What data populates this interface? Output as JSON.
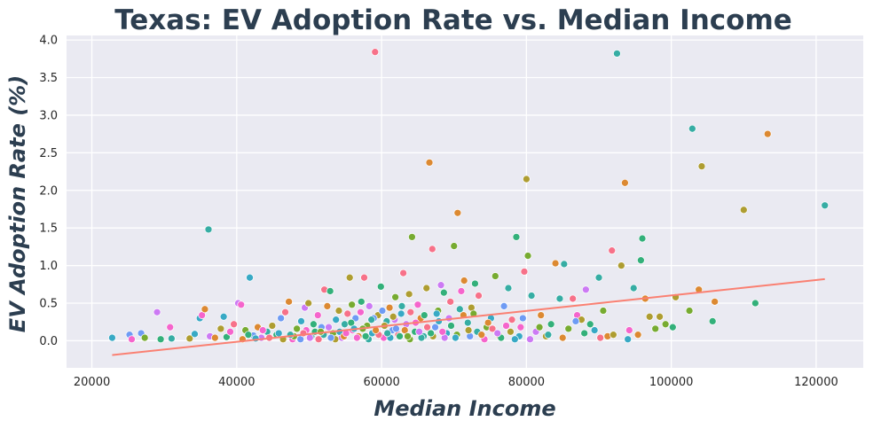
{
  "chart_data": {
    "type": "scatter",
    "title": "Texas: EV Adoption Rate vs. Median Income",
    "xlabel": "Median Income",
    "ylabel": "EV Adoption Rate (%)",
    "xlim": [
      16500,
      126500
    ],
    "ylim": [
      -0.36,
      4.06
    ],
    "xticks": [
      20000,
      40000,
      60000,
      80000,
      100000,
      120000
    ],
    "yticks": [
      0.0,
      0.5,
      1.0,
      1.5,
      2.0,
      2.5,
      3.0,
      3.5,
      4.0
    ],
    "xtick_labels": [
      "20000",
      "40000",
      "60000",
      "80000",
      "100000",
      "120000"
    ],
    "ytick_labels": [
      "0.0",
      "0.5",
      "1.0",
      "1.5",
      "2.0",
      "2.5",
      "3.0",
      "3.5",
      "4.0"
    ],
    "grid": true,
    "background": "#eaeaf2",
    "palette": [
      "#f77189",
      "#dc8932",
      "#ae9d31",
      "#77ab31",
      "#33b07a",
      "#36ada4",
      "#38a9c5",
      "#6e9bf4",
      "#cc7af4",
      "#f565cc"
    ],
    "trend_line": {
      "color": "#fa8072",
      "points": [
        [
          22800,
          -0.19
        ],
        [
          121200,
          0.82
        ]
      ]
    },
    "points": [
      [
        22800,
        0.04,
        6
      ],
      [
        25200,
        0.08,
        7
      ],
      [
        25500,
        0.02,
        9
      ],
      [
        26800,
        0.1,
        7
      ],
      [
        27300,
        0.04,
        3
      ],
      [
        29000,
        0.38,
        8
      ],
      [
        29500,
        0.02,
        4
      ],
      [
        30800,
        0.18,
        9
      ],
      [
        31000,
        0.03,
        5
      ],
      [
        33500,
        0.03,
        2
      ],
      [
        34200,
        0.09,
        6
      ],
      [
        34900,
        0.3,
        6
      ],
      [
        35200,
        0.34,
        9
      ],
      [
        35600,
        0.42,
        1
      ],
      [
        36100,
        1.48,
        5
      ],
      [
        36300,
        0.06,
        8
      ],
      [
        37000,
        0.04,
        1
      ],
      [
        37800,
        0.16,
        2
      ],
      [
        38200,
        0.32,
        6
      ],
      [
        38600,
        0.05,
        4
      ],
      [
        39100,
        0.12,
        9
      ],
      [
        39600,
        0.22,
        0
      ],
      [
        40200,
        0.5,
        8
      ],
      [
        40600,
        0.48,
        9
      ],
      [
        41200,
        0.14,
        3
      ],
      [
        41800,
        0.84,
        6
      ],
      [
        42300,
        0.07,
        7
      ],
      [
        42900,
        0.18,
        1
      ],
      [
        43400,
        0.04,
        8
      ],
      [
        44200,
        0.12,
        5
      ],
      [
        44900,
        0.2,
        2
      ],
      [
        45500,
        0.08,
        4
      ],
      [
        46100,
        0.3,
        7
      ],
      [
        46700,
        0.38,
        0
      ],
      [
        47200,
        0.52,
        1
      ],
      [
        47700,
        0.02,
        9
      ],
      [
        48300,
        0.16,
        3
      ],
      [
        48900,
        0.26,
        6
      ],
      [
        49400,
        0.44,
        8
      ],
      [
        49900,
        0.5,
        2
      ],
      [
        50300,
        0.06,
        5
      ],
      [
        50800,
        0.12,
        4
      ],
      [
        51200,
        0.34,
        9
      ],
      [
        51700,
        0.18,
        7
      ],
      [
        52100,
        0.68,
        0
      ],
      [
        52500,
        0.46,
        1
      ],
      [
        52900,
        0.66,
        4
      ],
      [
        53300,
        0.1,
        3
      ],
      [
        53700,
        0.28,
        6
      ],
      [
        54100,
        0.4,
        2
      ],
      [
        54500,
        0.04,
        8
      ],
      [
        54900,
        0.22,
        5
      ],
      [
        55300,
        0.36,
        0
      ],
      [
        55600,
        0.84,
        2
      ],
      [
        56000,
        0.14,
        9
      ],
      [
        56400,
        0.3,
        7
      ],
      [
        56800,
        0.06,
        1
      ],
      [
        57200,
        0.52,
        4
      ],
      [
        57600,
        0.84,
        0
      ],
      [
        58000,
        0.2,
        3
      ],
      [
        58300,
        0.46,
        8
      ],
      [
        58700,
        0.1,
        6
      ],
      [
        59100,
        3.84,
        0
      ],
      [
        59500,
        0.34,
        2
      ],
      [
        59900,
        0.72,
        4
      ],
      [
        60300,
        0.04,
        9
      ],
      [
        60700,
        0.26,
        5
      ],
      [
        61100,
        0.44,
        1
      ],
      [
        61500,
        0.14,
        7
      ],
      [
        61900,
        0.58,
        3
      ],
      [
        62300,
        0.08,
        0
      ],
      [
        62700,
        0.36,
        6
      ],
      [
        63000,
        0.9,
        0
      ],
      [
        63400,
        0.22,
        8
      ],
      [
        63800,
        0.62,
        2
      ],
      [
        64200,
        1.38,
        3
      ],
      [
        64600,
        0.12,
        4
      ],
      [
        65000,
        0.48,
        9
      ],
      [
        65400,
        0.3,
        1
      ],
      [
        65800,
        0.06,
        5
      ],
      [
        66200,
        0.7,
        2
      ],
      [
        66600,
        2.37,
        1
      ],
      [
        67000,
        1.22,
        0
      ],
      [
        67400,
        0.18,
        7
      ],
      [
        67800,
        0.4,
        3
      ],
      [
        68200,
        0.74,
        8
      ],
      [
        68600,
        0.64,
        4
      ],
      [
        69000,
        0.1,
        6
      ],
      [
        69500,
        0.52,
        0
      ],
      [
        70000,
        1.26,
        3
      ],
      [
        70500,
        1.7,
        1
      ],
      [
        71000,
        0.66,
        9
      ],
      [
        71400,
        0.8,
        1
      ],
      [
        71900,
        0.24,
        5
      ],
      [
        72400,
        0.44,
        2
      ],
      [
        72900,
        0.76,
        4
      ],
      [
        73400,
        0.6,
        0
      ],
      [
        73900,
        0.08,
        7
      ],
      [
        74500,
        0.18,
        3
      ],
      [
        75100,
        0.3,
        6
      ],
      [
        75700,
        0.86,
        3
      ],
      [
        76300,
        0.06,
        1
      ],
      [
        76900,
        0.46,
        7
      ],
      [
        77500,
        0.7,
        5
      ],
      [
        78000,
        0.28,
        0
      ],
      [
        78600,
        1.38,
        4
      ],
      [
        79200,
        0.18,
        9
      ],
      [
        79700,
        0.92,
        0
      ],
      [
        80000,
        2.15,
        2
      ],
      [
        80200,
        1.13,
        3
      ],
      [
        80700,
        0.6,
        5
      ],
      [
        81300,
        0.12,
        8
      ],
      [
        82000,
        0.34,
        1
      ],
      [
        82700,
        0.06,
        2
      ],
      [
        83400,
        0.22,
        4
      ],
      [
        84000,
        1.03,
        1
      ],
      [
        84600,
        0.56,
        5
      ],
      [
        85200,
        1.02,
        5
      ],
      [
        85800,
        0.16,
        3
      ],
      [
        86400,
        0.56,
        0
      ],
      [
        87000,
        0.34,
        9
      ],
      [
        87600,
        0.28,
        2
      ],
      [
        88200,
        0.68,
        8
      ],
      [
        88800,
        0.22,
        4
      ],
      [
        89400,
        0.14,
        6
      ],
      [
        90000,
        0.84,
        5
      ],
      [
        90600,
        0.4,
        3
      ],
      [
        91200,
        0.06,
        1
      ],
      [
        91800,
        1.2,
        0
      ],
      [
        92500,
        3.82,
        5
      ],
      [
        93100,
        1.0,
        2
      ],
      [
        93600,
        2.1,
        1
      ],
      [
        94200,
        0.14,
        9
      ],
      [
        94800,
        0.7,
        5
      ],
      [
        95400,
        0.08,
        1
      ],
      [
        95800,
        1.07,
        4
      ],
      [
        96000,
        1.36,
        4
      ],
      [
        96400,
        0.56,
        1
      ],
      [
        97000,
        0.32,
        2
      ],
      [
        97800,
        0.16,
        3
      ],
      [
        98400,
        0.32,
        2
      ],
      [
        99200,
        0.22,
        3
      ],
      [
        100200,
        0.18,
        4
      ],
      [
        100600,
        0.58,
        2
      ],
      [
        102500,
        0.4,
        3
      ],
      [
        102900,
        2.82,
        5
      ],
      [
        103800,
        0.68,
        1
      ],
      [
        104200,
        2.32,
        2
      ],
      [
        105700,
        0.26,
        4
      ],
      [
        106000,
        0.52,
        1
      ],
      [
        110000,
        1.74,
        2
      ],
      [
        111600,
        0.5,
        4
      ],
      [
        113300,
        2.75,
        1
      ],
      [
        121200,
        1.8,
        5
      ],
      [
        44500,
        0.04,
        0
      ],
      [
        45800,
        0.1,
        6
      ],
      [
        47900,
        0.06,
        3
      ],
      [
        48800,
        0.02,
        7
      ],
      [
        49600,
        0.14,
        9
      ],
      [
        50600,
        0.22,
        4
      ],
      [
        51300,
        0.02,
        0
      ],
      [
        52000,
        0.08,
        5
      ],
      [
        52700,
        0.18,
        8
      ],
      [
        53600,
        0.02,
        2
      ],
      [
        54200,
        0.12,
        6
      ],
      [
        54800,
        0.06,
        1
      ],
      [
        55800,
        0.24,
        4
      ],
      [
        56600,
        0.04,
        9
      ],
      [
        57400,
        0.16,
        3
      ],
      [
        58200,
        0.02,
        5
      ],
      [
        58900,
        0.3,
        7
      ],
      [
        59600,
        0.08,
        0
      ],
      [
        60400,
        0.2,
        2
      ],
      [
        61200,
        0.04,
        6
      ],
      [
        61800,
        0.28,
        8
      ],
      [
        62500,
        0.06,
        4
      ],
      [
        63200,
        0.14,
        1
      ],
      [
        63900,
        0.02,
        3
      ],
      [
        64700,
        0.24,
        9
      ],
      [
        65500,
        0.04,
        5
      ],
      [
        66300,
        0.18,
        0
      ],
      [
        67100,
        0.06,
        2
      ],
      [
        67900,
        0.26,
        6
      ],
      [
        68700,
        0.04,
        8
      ],
      [
        69600,
        0.2,
        4
      ],
      [
        70400,
        0.08,
        3
      ],
      [
        71300,
        0.34,
        1
      ],
      [
        72200,
        0.06,
        7
      ],
      [
        73200,
        0.12,
        5
      ],
      [
        74200,
        0.02,
        9
      ],
      [
        75300,
        0.16,
        0
      ],
      [
        76500,
        0.04,
        4
      ],
      [
        77800,
        0.12,
        2
      ],
      [
        79000,
        0.06,
        6
      ],
      [
        80500,
        0.02,
        8
      ],
      [
        81800,
        0.18,
        3
      ],
      [
        83000,
        0.08,
        5
      ],
      [
        85000,
        0.04,
        1
      ],
      [
        86800,
        0.26,
        7
      ],
      [
        88000,
        0.1,
        4
      ],
      [
        90200,
        0.04,
        0
      ],
      [
        92000,
        0.08,
        2
      ],
      [
        94000,
        0.02,
        6
      ],
      [
        40800,
        0.02,
        1
      ],
      [
        41600,
        0.08,
        4
      ],
      [
        42600,
        0.03,
        6
      ],
      [
        43600,
        0.14,
        9
      ],
      [
        46400,
        0.02,
        2
      ],
      [
        47400,
        0.08,
        5
      ],
      [
        49200,
        0.1,
        0
      ],
      [
        50100,
        0.04,
        8
      ],
      [
        51600,
        0.12,
        3
      ],
      [
        53000,
        0.04,
        7
      ],
      [
        55100,
        0.1,
        9
      ],
      [
        56200,
        0.16,
        6
      ],
      [
        57800,
        0.06,
        4
      ],
      [
        59200,
        0.14,
        1
      ],
      [
        60800,
        0.1,
        5
      ],
      [
        62000,
        0.16,
        7
      ],
      [
        63600,
        0.06,
        3
      ],
      [
        65200,
        0.12,
        8
      ],
      [
        66800,
        0.1,
        4
      ],
      [
        68400,
        0.12,
        9
      ],
      [
        70200,
        0.04,
        6
      ],
      [
        72000,
        0.14,
        2
      ],
      [
        73800,
        0.08,
        1
      ],
      [
        76000,
        0.1,
        8
      ],
      [
        78400,
        0.02,
        6
      ],
      [
        55900,
        0.48,
        3
      ],
      [
        57100,
        0.38,
        9
      ],
      [
        58600,
        0.28,
        5
      ],
      [
        60100,
        0.4,
        7
      ],
      [
        61600,
        0.32,
        2
      ],
      [
        62800,
        0.46,
        5
      ],
      [
        64000,
        0.38,
        0
      ],
      [
        65900,
        0.34,
        4
      ],
      [
        67600,
        0.36,
        6
      ],
      [
        69300,
        0.3,
        8
      ],
      [
        70800,
        0.42,
        5
      ],
      [
        72700,
        0.36,
        3
      ],
      [
        74700,
        0.24,
        1
      ],
      [
        77200,
        0.2,
        9
      ],
      [
        79500,
        0.3,
        7
      ]
    ]
  }
}
